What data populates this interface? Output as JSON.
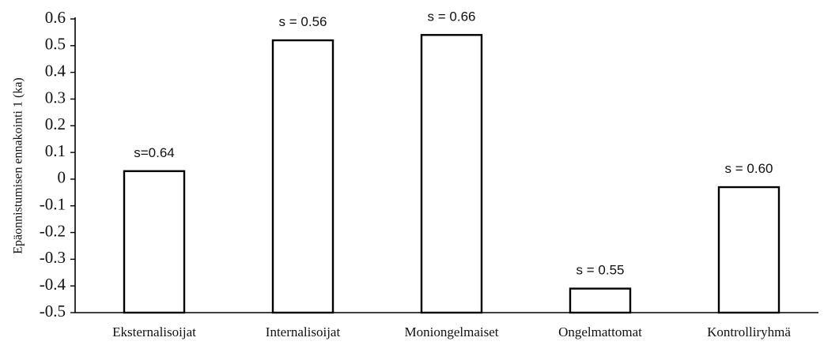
{
  "chart_data": {
    "type": "bar",
    "title": "",
    "xlabel": "",
    "ylabel": "Epäonnistumisen ennakointi 1 (ka)",
    "ylim": [
      -0.5,
      0.6
    ],
    "yticks": [
      "0.6",
      "0.5",
      "0.4",
      "0.3",
      "0.2",
      "0.1",
      "0",
      "-0.1",
      "-0.2",
      "-0.3",
      "-0.4",
      "-0.5"
    ],
    "categories": [
      "Eksternalisoijat",
      "Internalisoijat",
      "Moniongelmaiset",
      "Ongelmattomat",
      "Kontrolliryhmä"
    ],
    "values": [
      0.03,
      0.52,
      0.54,
      -0.41,
      -0.03
    ],
    "bar_labels": [
      "s=0.64",
      "s = 0.56",
      "s = 0.66",
      "s = 0.55",
      "s = 0.60"
    ],
    "grid": false,
    "legend": "none",
    "colors": {
      "bar_fill": "#ffffff",
      "bar_stroke": "#000000",
      "axis": "#000000"
    }
  }
}
